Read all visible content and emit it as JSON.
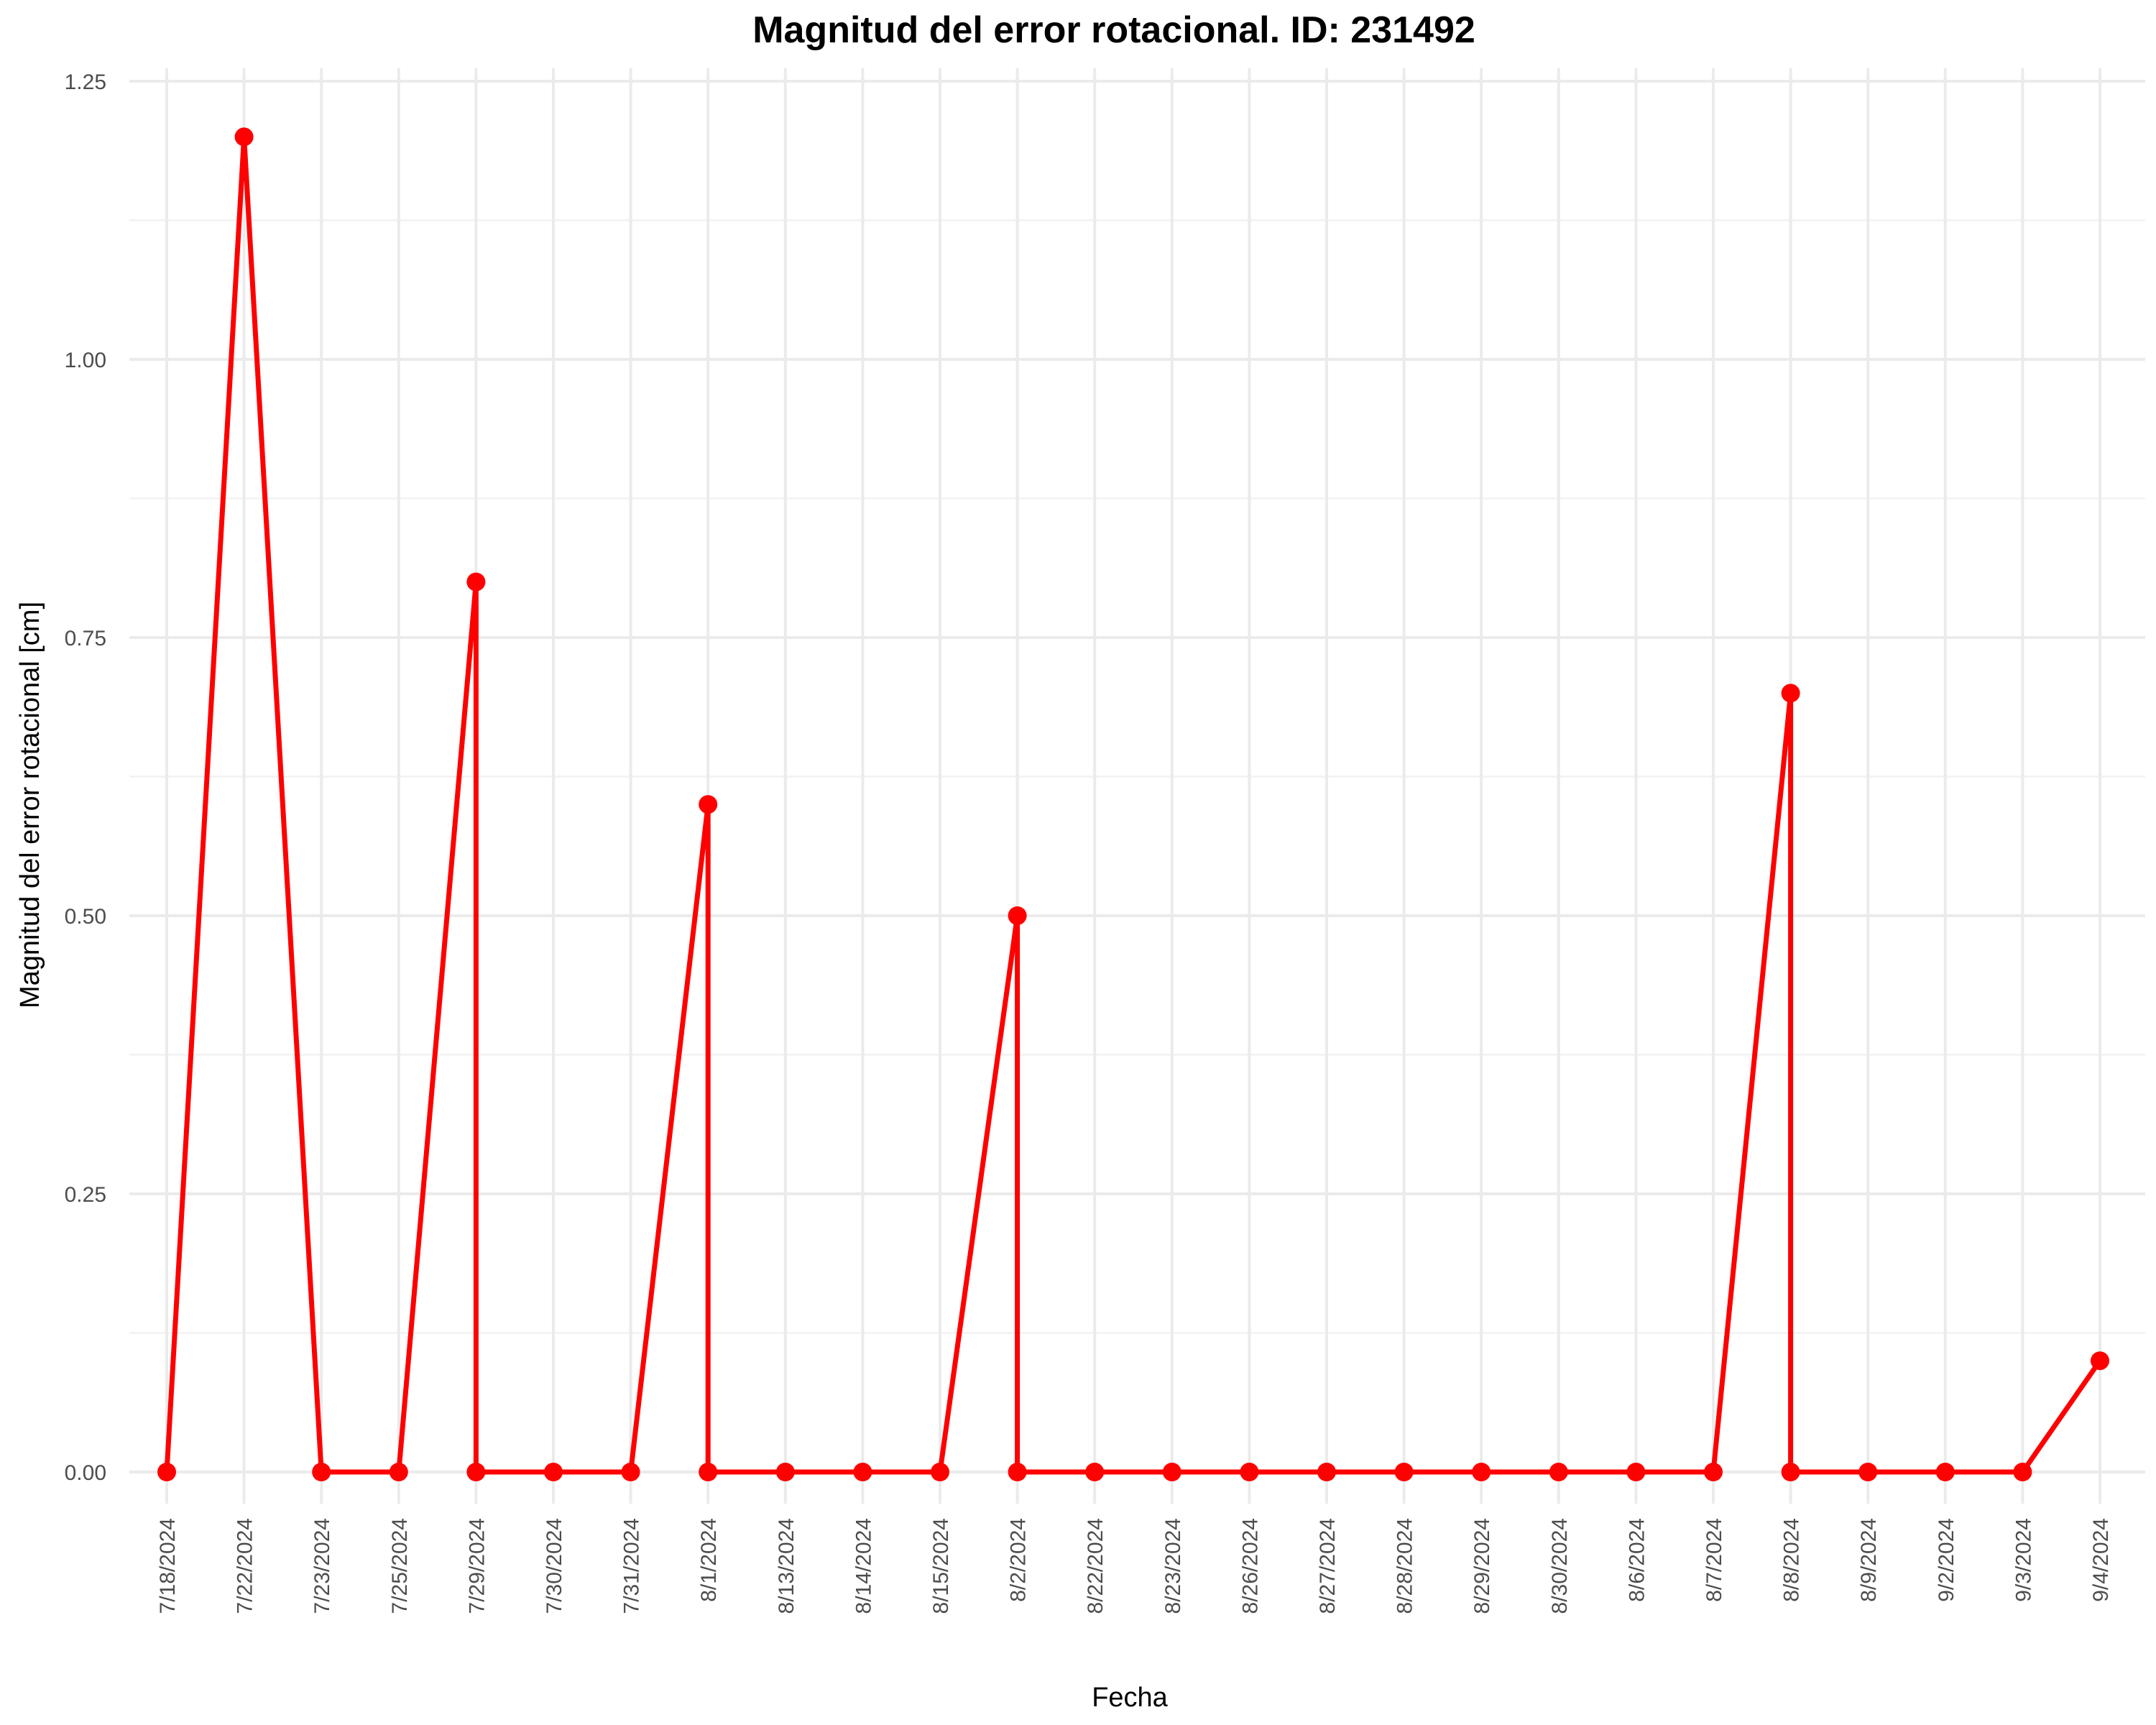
{
  "chart_data": {
    "type": "line",
    "title": "Magnitud del error rotacional. ID: 231492",
    "xlabel": "Fecha",
    "ylabel": "Magnitud del error rotacional [cm]",
    "ylim": [
      -0.05,
      1.25
    ],
    "yticks": [
      0.0,
      0.25,
      0.5,
      0.75,
      1.0,
      1.25
    ],
    "ytick_labels": [
      "0.00",
      "0.25",
      "0.50",
      "0.75",
      "1.00",
      "1.25"
    ],
    "grid": true,
    "line_color": "#ff0000",
    "categories": [
      "7/18/2024",
      "7/22/2024",
      "7/23/2024",
      "7/25/2024",
      "7/29/2024",
      "7/30/2024",
      "7/31/2024",
      "8/1/2024",
      "8/13/2024",
      "8/14/2024",
      "8/15/2024",
      "8/2/2024",
      "8/22/2024",
      "8/23/2024",
      "8/26/2024",
      "8/27/2024",
      "8/28/2024",
      "8/29/2024",
      "8/30/2024",
      "8/6/2024",
      "8/7/2024",
      "8/8/2024",
      "8/9/2024",
      "9/2/2024",
      "9/3/2024",
      "9/4/2024"
    ],
    "points": [
      {
        "x": "7/18/2024",
        "y": 0.0
      },
      {
        "x": "7/22/2024",
        "y": 1.2
      },
      {
        "x": "7/23/2024",
        "y": 0.0
      },
      {
        "x": "7/25/2024",
        "y": 0.0
      },
      {
        "x": "7/29/2024",
        "y": 0.8
      },
      {
        "x": "7/29/2024",
        "y": 0.0
      },
      {
        "x": "7/30/2024",
        "y": 0.0
      },
      {
        "x": "7/31/2024",
        "y": 0.0
      },
      {
        "x": "8/1/2024",
        "y": 0.6
      },
      {
        "x": "8/1/2024",
        "y": 0.0
      },
      {
        "x": "8/13/2024",
        "y": 0.0
      },
      {
        "x": "8/14/2024",
        "y": 0.0
      },
      {
        "x": "8/15/2024",
        "y": 0.0
      },
      {
        "x": "8/2/2024",
        "y": 0.5
      },
      {
        "x": "8/2/2024",
        "y": 0.0
      },
      {
        "x": "8/22/2024",
        "y": 0.0
      },
      {
        "x": "8/23/2024",
        "y": 0.0
      },
      {
        "x": "8/26/2024",
        "y": 0.0
      },
      {
        "x": "8/27/2024",
        "y": 0.0
      },
      {
        "x": "8/28/2024",
        "y": 0.0
      },
      {
        "x": "8/29/2024",
        "y": 0.0
      },
      {
        "x": "8/30/2024",
        "y": 0.0
      },
      {
        "x": "8/6/2024",
        "y": 0.0
      },
      {
        "x": "8/7/2024",
        "y": 0.0
      },
      {
        "x": "8/8/2024",
        "y": 0.7
      },
      {
        "x": "8/8/2024",
        "y": 0.0
      },
      {
        "x": "8/9/2024",
        "y": 0.0
      },
      {
        "x": "9/2/2024",
        "y": 0.0
      },
      {
        "x": "9/3/2024",
        "y": 0.0
      },
      {
        "x": "9/4/2024",
        "y": 0.1
      }
    ]
  }
}
